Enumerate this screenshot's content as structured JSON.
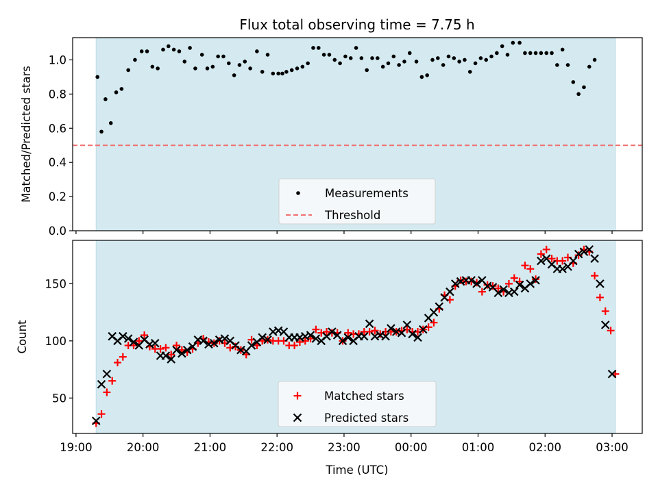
{
  "chart_data": {
    "type": "scatter",
    "title": "Flux total observing time = 7.75 h",
    "x_axis": {
      "label": "Time (UTC)",
      "ticks": [
        {
          "value": -5,
          "label": "19:00"
        },
        {
          "value": -4,
          "label": "20:00"
        },
        {
          "value": -3,
          "label": "21:00"
        },
        {
          "value": -2,
          "label": "22:00"
        },
        {
          "value": -1,
          "label": "23:00"
        },
        {
          "value": 0,
          "label": "00:00"
        },
        {
          "value": 1,
          "label": "01:00"
        },
        {
          "value": 2,
          "label": "02:00"
        },
        {
          "value": 3,
          "label": "03:00"
        }
      ],
      "range": [
        -5.05,
        3.45
      ],
      "observing_window": [
        -4.7,
        3.05
      ]
    },
    "panels": [
      {
        "id": "ratio",
        "ylabel": "Matched/Predicted stars",
        "ylim": [
          0.0,
          1.13
        ],
        "yticks": [
          0.0,
          0.2,
          0.4,
          0.6,
          0.8,
          1.0
        ],
        "threshold": 0.5,
        "legend": {
          "position": "lower center",
          "entries": [
            "Measurements",
            "Threshold"
          ]
        }
      },
      {
        "id": "counts",
        "ylabel": "Count",
        "ylim": [
          19,
          188
        ],
        "yticks": [
          50,
          100,
          150
        ],
        "legend": {
          "position": "lower center",
          "entries": [
            "Matched stars",
            "Predicted stars"
          ]
        }
      }
    ],
    "series": [
      {
        "name": "Measurements",
        "panel": "ratio",
        "marker": "dot",
        "color": "#000000",
        "points": [
          [
            -4.68,
            0.9
          ],
          [
            -4.62,
            0.58
          ],
          [
            -4.56,
            0.77
          ],
          [
            -4.48,
            0.63
          ],
          [
            -4.4,
            0.81
          ],
          [
            -4.32,
            0.83
          ],
          [
            -4.22,
            0.94
          ],
          [
            -4.12,
            1.0
          ],
          [
            -4.02,
            1.05
          ],
          [
            -3.94,
            1.05
          ],
          [
            -3.86,
            0.96
          ],
          [
            -3.78,
            0.95
          ],
          [
            -3.7,
            1.06
          ],
          [
            -3.62,
            1.08
          ],
          [
            -3.54,
            1.06
          ],
          [
            -3.46,
            1.05
          ],
          [
            -3.38,
            0.99
          ],
          [
            -3.3,
            1.07
          ],
          [
            -3.22,
            0.95
          ],
          [
            -3.12,
            1.03
          ],
          [
            -3.04,
            0.95
          ],
          [
            -2.96,
            0.96
          ],
          [
            -2.88,
            1.02
          ],
          [
            -2.8,
            1.02
          ],
          [
            -2.72,
            0.98
          ],
          [
            -2.64,
            0.91
          ],
          [
            -2.56,
            0.97
          ],
          [
            -2.48,
            0.99
          ],
          [
            -2.4,
            0.95
          ],
          [
            -2.3,
            1.05
          ],
          [
            -2.22,
            0.93
          ],
          [
            -2.14,
            1.03
          ],
          [
            -2.06,
            0.92
          ],
          [
            -1.98,
            0.92
          ],
          [
            -1.92,
            0.92
          ],
          [
            -1.86,
            0.93
          ],
          [
            -1.78,
            0.94
          ],
          [
            -1.7,
            0.95
          ],
          [
            -1.62,
            0.96
          ],
          [
            -1.54,
            0.98
          ],
          [
            -1.46,
            1.07
          ],
          [
            -1.38,
            1.07
          ],
          [
            -1.3,
            1.03
          ],
          [
            -1.22,
            1.03
          ],
          [
            -1.14,
            1.0
          ],
          [
            -1.06,
            0.98
          ],
          [
            -0.98,
            1.02
          ],
          [
            -0.9,
            1.01
          ],
          [
            -0.82,
            1.07
          ],
          [
            -0.74,
            1.01
          ],
          [
            -0.66,
            0.94
          ],
          [
            -0.58,
            1.01
          ],
          [
            -0.5,
            1.01
          ],
          [
            -0.42,
            0.96
          ],
          [
            -0.34,
            0.98
          ],
          [
            -0.26,
            1.02
          ],
          [
            -0.18,
            0.97
          ],
          [
            -0.1,
            0.99
          ],
          [
            -0.02,
            1.04
          ],
          [
            0.08,
            0.99
          ],
          [
            0.16,
            0.9
          ],
          [
            0.24,
            0.91
          ],
          [
            0.32,
            1.0
          ],
          [
            0.4,
            1.01
          ],
          [
            0.48,
            0.97
          ],
          [
            0.56,
            1.02
          ],
          [
            0.64,
            1.01
          ],
          [
            0.72,
            0.99
          ],
          [
            0.8,
            1.0
          ],
          [
            0.88,
            0.93
          ],
          [
            0.96,
            0.98
          ],
          [
            1.04,
            1.01
          ],
          [
            1.12,
            1.0
          ],
          [
            1.2,
            1.02
          ],
          [
            1.28,
            1.04
          ],
          [
            1.36,
            1.08
          ],
          [
            1.44,
            1.03
          ],
          [
            1.52,
            1.1
          ],
          [
            1.62,
            1.1
          ],
          [
            1.7,
            1.04
          ],
          [
            1.78,
            1.04
          ],
          [
            1.86,
            1.04
          ],
          [
            1.94,
            1.04
          ],
          [
            2.02,
            1.04
          ],
          [
            2.1,
            1.04
          ],
          [
            2.18,
            0.97
          ],
          [
            2.26,
            1.06
          ],
          [
            2.34,
            0.97
          ],
          [
            2.42,
            0.87
          ],
          [
            2.5,
            0.8
          ],
          [
            2.58,
            0.84
          ],
          [
            2.66,
            0.96
          ],
          [
            2.74,
            1.0
          ]
        ]
      },
      {
        "name": "Threshold",
        "panel": "ratio",
        "style": "dashed",
        "color": "#f07070"
      },
      {
        "name": "Matched stars",
        "panel": "counts",
        "marker": "plus",
        "color": "#ff0000",
        "points": [
          [
            -4.7,
            28
          ],
          [
            -4.62,
            36
          ],
          [
            -4.54,
            55
          ],
          [
            -4.46,
            65
          ],
          [
            -4.38,
            81
          ],
          [
            -4.3,
            86
          ],
          [
            -4.22,
            96
          ],
          [
            -4.14,
            96
          ],
          [
            -4.06,
            100
          ],
          [
            -3.98,
            105
          ],
          [
            -3.9,
            95
          ],
          [
            -3.82,
            93
          ],
          [
            -3.74,
            93
          ],
          [
            -3.66,
            94
          ],
          [
            -3.58,
            88
          ],
          [
            -3.5,
            96
          ],
          [
            -3.42,
            92
          ],
          [
            -3.34,
            90
          ],
          [
            -3.26,
            93
          ],
          [
            -3.18,
            98
          ],
          [
            -3.1,
            102
          ],
          [
            -3.02,
            99
          ],
          [
            -2.94,
            98
          ],
          [
            -2.86,
            100
          ],
          [
            -2.78,
            98
          ],
          [
            -2.7,
            94
          ],
          [
            -2.62,
            95
          ],
          [
            -2.54,
            92
          ],
          [
            -2.46,
            88
          ],
          [
            -2.38,
            101
          ],
          [
            -2.3,
            96
          ],
          [
            -2.22,
            100
          ],
          [
            -2.14,
            101
          ],
          [
            -2.06,
            100
          ],
          [
            -1.98,
            100
          ],
          [
            -1.9,
            100
          ],
          [
            -1.82,
            96
          ],
          [
            -1.74,
            96
          ],
          [
            -1.66,
            99
          ],
          [
            -1.58,
            100
          ],
          [
            -1.5,
            102
          ],
          [
            -1.42,
            110
          ],
          [
            -1.34,
            107
          ],
          [
            -1.26,
            108
          ],
          [
            -1.18,
            107
          ],
          [
            -1.1,
            107
          ],
          [
            -1.02,
            100
          ],
          [
            -0.94,
            107
          ],
          [
            -0.86,
            106
          ],
          [
            -0.78,
            106
          ],
          [
            -0.7,
            108
          ],
          [
            -0.62,
            108
          ],
          [
            -0.54,
            109
          ],
          [
            -0.46,
            106
          ],
          [
            -0.38,
            108
          ],
          [
            -0.3,
            108
          ],
          [
            -0.22,
            108
          ],
          [
            -0.14,
            109
          ],
          [
            -0.06,
            110
          ],
          [
            0.02,
            108
          ],
          [
            0.1,
            108
          ],
          [
            0.18,
            110
          ],
          [
            0.26,
            112
          ],
          [
            0.34,
            116
          ],
          [
            0.42,
            128
          ],
          [
            0.5,
            140
          ],
          [
            0.58,
            136
          ],
          [
            0.66,
            148
          ],
          [
            0.74,
            153
          ],
          [
            0.82,
            152
          ],
          [
            0.9,
            152
          ],
          [
            0.98,
            151
          ],
          [
            1.06,
            143
          ],
          [
            1.14,
            149
          ],
          [
            1.22,
            148
          ],
          [
            1.3,
            146
          ],
          [
            1.38,
            143
          ],
          [
            1.46,
            150
          ],
          [
            1.54,
            155
          ],
          [
            1.62,
            152
          ],
          [
            1.7,
            166
          ],
          [
            1.78,
            163
          ],
          [
            1.86,
            154
          ],
          [
            1.94,
            176
          ],
          [
            2.02,
            180
          ],
          [
            2.1,
            172
          ],
          [
            2.18,
            170
          ],
          [
            2.26,
            170
          ],
          [
            2.34,
            173
          ],
          [
            2.42,
            168
          ],
          [
            2.5,
            175
          ],
          [
            2.58,
            180
          ],
          [
            2.66,
            178
          ],
          [
            2.74,
            157
          ],
          [
            2.82,
            138
          ],
          [
            2.9,
            126
          ],
          [
            2.98,
            109
          ],
          [
            3.05,
            71
          ]
        ]
      },
      {
        "name": "Predicted stars",
        "panel": "counts",
        "marker": "x",
        "color": "#000000",
        "points": [
          [
            -4.7,
            30
          ],
          [
            -4.62,
            62
          ],
          [
            -4.54,
            71
          ],
          [
            -4.46,
            104
          ],
          [
            -4.38,
            100
          ],
          [
            -4.3,
            104
          ],
          [
            -4.22,
            102
          ],
          [
            -4.14,
            99
          ],
          [
            -4.06,
            96
          ],
          [
            -3.98,
            101
          ],
          [
            -3.9,
            97
          ],
          [
            -3.82,
            98
          ],
          [
            -3.74,
            87
          ],
          [
            -3.66,
            87
          ],
          [
            -3.58,
            84
          ],
          [
            -3.5,
            92
          ],
          [
            -3.42,
            89
          ],
          [
            -3.34,
            92
          ],
          [
            -3.26,
            95
          ],
          [
            -3.18,
            101
          ],
          [
            -3.1,
            100
          ],
          [
            -3.02,
            97
          ],
          [
            -2.94,
            98
          ],
          [
            -2.86,
            101
          ],
          [
            -2.78,
            102
          ],
          [
            -2.7,
            100
          ],
          [
            -2.62,
            96
          ],
          [
            -2.54,
            92
          ],
          [
            -2.46,
            91
          ],
          [
            -2.38,
            96
          ],
          [
            -2.3,
            99
          ],
          [
            -2.22,
            103
          ],
          [
            -2.14,
            101
          ],
          [
            -2.06,
            108
          ],
          [
            -1.98,
            109
          ],
          [
            -1.9,
            108
          ],
          [
            -1.82,
            103
          ],
          [
            -1.74,
            103
          ],
          [
            -1.66,
            103
          ],
          [
            -1.58,
            104
          ],
          [
            -1.5,
            105
          ],
          [
            -1.42,
            102
          ],
          [
            -1.34,
            100
          ],
          [
            -1.26,
            104
          ],
          [
            -1.18,
            108
          ],
          [
            -1.1,
            105
          ],
          [
            -1.02,
            100
          ],
          [
            -0.94,
            103
          ],
          [
            -0.86,
            100
          ],
          [
            -0.78,
            104
          ],
          [
            -0.7,
            104
          ],
          [
            -0.62,
            115
          ],
          [
            -0.54,
            104
          ],
          [
            -0.46,
            105
          ],
          [
            -0.38,
            104
          ],
          [
            -0.3,
            111
          ],
          [
            -0.22,
            108
          ],
          [
            -0.14,
            107
          ],
          [
            -0.06,
            114
          ],
          [
            0.02,
            106
          ],
          [
            0.1,
            103
          ],
          [
            0.18,
            110
          ],
          [
            0.26,
            120
          ],
          [
            0.34,
            125
          ],
          [
            0.42,
            130
          ],
          [
            0.5,
            138
          ],
          [
            0.58,
            143
          ],
          [
            0.66,
            150
          ],
          [
            0.74,
            152
          ],
          [
            0.82,
            153
          ],
          [
            0.9,
            153
          ],
          [
            0.98,
            150
          ],
          [
            1.06,
            153
          ],
          [
            1.14,
            148
          ],
          [
            1.22,
            147
          ],
          [
            1.3,
            142
          ],
          [
            1.38,
            145
          ],
          [
            1.46,
            142
          ],
          [
            1.54,
            143
          ],
          [
            1.62,
            149
          ],
          [
            1.7,
            146
          ],
          [
            1.78,
            150
          ],
          [
            1.86,
            153
          ],
          [
            1.94,
            170
          ],
          [
            2.02,
            172
          ],
          [
            2.1,
            167
          ],
          [
            2.18,
            163
          ],
          [
            2.26,
            163
          ],
          [
            2.34,
            165
          ],
          [
            2.42,
            170
          ],
          [
            2.5,
            176
          ],
          [
            2.58,
            178
          ],
          [
            2.66,
            180
          ],
          [
            2.74,
            172
          ],
          [
            2.82,
            150
          ],
          [
            2.9,
            114
          ],
          [
            3.0,
            71
          ]
        ]
      }
    ],
    "colors": {
      "window_fill": "#d4eaf0",
      "threshold": "#f07070",
      "matched": "#ff0000",
      "predicted": "#000000",
      "measurements": "#000000"
    }
  }
}
